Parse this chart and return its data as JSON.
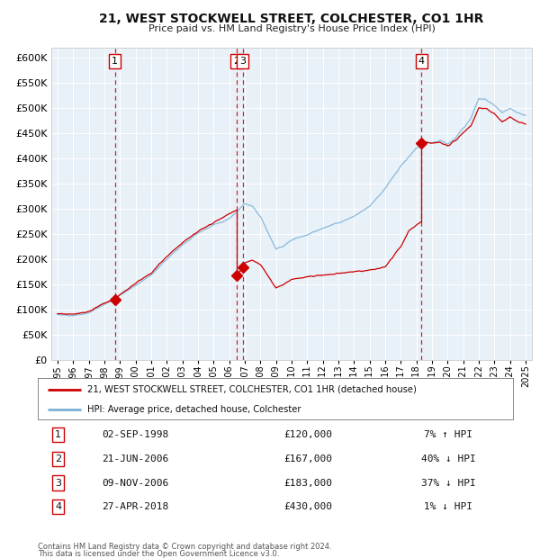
{
  "title": "21, WEST STOCKWELL STREET, COLCHESTER, CO1 1HR",
  "subtitle": "Price paid vs. HM Land Registry's House Price Index (HPI)",
  "footnote1": "Contains HM Land Registry data © Crown copyright and database right 2024.",
  "footnote2": "This data is licensed under the Open Government Licence v3.0.",
  "legend_red": "21, WEST STOCKWELL STREET, COLCHESTER, CO1 1HR (detached house)",
  "legend_blue": "HPI: Average price, detached house, Colchester",
  "transactions": [
    {
      "num": 1,
      "date": "02-SEP-1998",
      "price": 120000,
      "pct": "7%",
      "dir": "↑",
      "x_year": 1998.67
    },
    {
      "num": 2,
      "date": "21-JUN-2006",
      "price": 167000,
      "pct": "40%",
      "dir": "↓",
      "x_year": 2006.47
    },
    {
      "num": 3,
      "date": "09-NOV-2006",
      "price": 183000,
      "pct": "37%",
      "dir": "↓",
      "x_year": 2006.86
    },
    {
      "num": 4,
      "date": "27-APR-2018",
      "price": 430000,
      "pct": "1%",
      "dir": "↓",
      "x_year": 2018.32
    }
  ],
  "bg_color": "#e8f0f8",
  "fig_bg": "#ffffff",
  "red_line_color": "#cc0000",
  "blue_line_color": "#7ab0d4",
  "vline_color": "#cc0000",
  "marker_color": "#cc0000",
  "ylim_max": 620000,
  "yticks": [
    0,
    50000,
    100000,
    150000,
    200000,
    250000,
    300000,
    350000,
    400000,
    450000,
    500000,
    550000,
    600000
  ],
  "xlim_start": 1994.6,
  "xlim_end": 2025.4,
  "hpi_anchors_x": [
    1995.0,
    1996.0,
    1997.0,
    1998.0,
    1999.0,
    2000.0,
    2001.0,
    2002.0,
    2003.0,
    2004.0,
    2005.0,
    2006.0,
    2006.5,
    2007.0,
    2007.5,
    2008.0,
    2009.0,
    2009.5,
    2010.0,
    2011.0,
    2012.0,
    2013.0,
    2014.0,
    2015.0,
    2016.0,
    2017.0,
    2018.0,
    2018.5,
    2019.0,
    2019.5,
    2020.0,
    2020.5,
    2021.0,
    2021.5,
    2022.0,
    2022.5,
    2023.0,
    2023.5,
    2024.0,
    2024.5,
    2025.0
  ],
  "hpi_anchors_y": [
    90000,
    88000,
    93000,
    110000,
    128000,
    148000,
    168000,
    200000,
    228000,
    252000,
    268000,
    280000,
    295000,
    310000,
    305000,
    285000,
    220000,
    225000,
    238000,
    248000,
    262000,
    272000,
    285000,
    305000,
    340000,
    385000,
    420000,
    432000,
    430000,
    435000,
    428000,
    440000,
    460000,
    480000,
    520000,
    515000,
    505000,
    490000,
    500000,
    490000,
    485000
  ],
  "red_anchors_x": [
    1995.0,
    1996.0,
    1997.0,
    1998.0,
    1998.67,
    1999.0,
    2000.0,
    2001.0,
    2002.0,
    2003.0,
    2004.0,
    2005.0,
    2006.0,
    2006.47,
    2006.47,
    2006.86,
    2006.86,
    2007.0,
    2007.5,
    2008.0,
    2009.0,
    2009.5,
    2010.0,
    2011.0,
    2012.0,
    2013.0,
    2014.0,
    2015.0,
    2016.0,
    2017.0,
    2017.5,
    2018.32,
    2018.32,
    2018.5,
    2019.0,
    2019.5,
    2020.0,
    2020.5,
    2021.0,
    2021.5,
    2022.0,
    2022.5,
    2023.0,
    2023.5,
    2024.0,
    2024.5,
    2025.0
  ],
  "red_anchors_y": [
    92000,
    90000,
    96000,
    113000,
    120000,
    130000,
    152000,
    172000,
    205000,
    233000,
    255000,
    272000,
    290000,
    298000,
    167000,
    183000,
    183000,
    192000,
    198000,
    190000,
    143000,
    150000,
    160000,
    165000,
    168000,
    172000,
    175000,
    178000,
    185000,
    225000,
    255000,
    275000,
    430000,
    432000,
    430000,
    432000,
    425000,
    435000,
    450000,
    465000,
    500000,
    498000,
    488000,
    472000,
    482000,
    472000,
    468000
  ]
}
